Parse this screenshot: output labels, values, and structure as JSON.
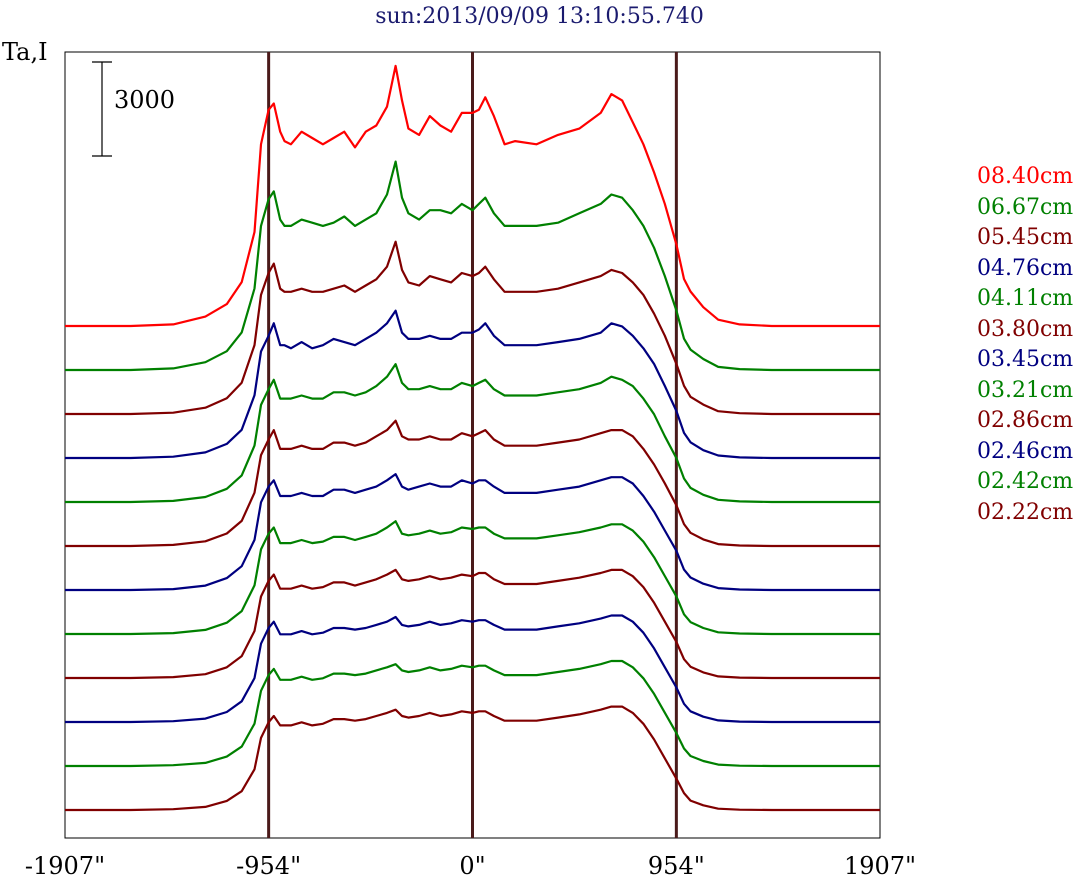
{
  "chart_data": {
    "type": "line",
    "title": "sun:2013/09/09 13:10:55.740",
    "ylabel": "Ta,I",
    "scale_bar": {
      "value": 3000,
      "label": "3000"
    },
    "x_ticks": [
      "-1907\"",
      "-954\"",
      "0\"",
      "954\"",
      "1907\""
    ],
    "x_tick_values": [
      -1907,
      -954,
      0,
      954,
      1907
    ],
    "xlim": [
      -1907,
      1907
    ],
    "vertical_markers": [
      -954,
      0,
      954
    ],
    "legend_position": "right",
    "series": [
      {
        "name": "08.40cm",
        "color": "#ff0000",
        "offset": 11,
        "profile": "p840"
      },
      {
        "name": "06.67cm",
        "color": "#008000",
        "offset": 10,
        "profile": "p667"
      },
      {
        "name": "05.45cm",
        "color": "#800000",
        "offset": 9,
        "profile": "p545"
      },
      {
        "name": "04.76cm",
        "color": "#000080",
        "offset": 8,
        "profile": "p476"
      },
      {
        "name": "04.11cm",
        "color": "#008000",
        "offset": 7,
        "profile": "p411"
      },
      {
        "name": "03.80cm",
        "color": "#800000",
        "offset": 6,
        "profile": "p380"
      },
      {
        "name": "03.45cm",
        "color": "#000080",
        "offset": 5,
        "profile": "p345"
      },
      {
        "name": "03.21cm",
        "color": "#008000",
        "offset": 4,
        "profile": "p321"
      },
      {
        "name": "02.86cm",
        "color": "#800000",
        "offset": 3,
        "profile": "p286"
      },
      {
        "name": "02.46cm",
        "color": "#000080",
        "offset": 2,
        "profile": "p246"
      },
      {
        "name": "02.42cm",
        "color": "#008000",
        "offset": 1,
        "profile": "p242"
      },
      {
        "name": "02.22cm",
        "color": "#800000",
        "offset": 0,
        "profile": "p222"
      }
    ],
    "profiles": {
      "x": [
        -1907,
        -1600,
        -1400,
        -1250,
        -1150,
        -1080,
        -1020,
        -990,
        -954,
        -930,
        -900,
        -880,
        -850,
        -800,
        -750,
        -700,
        -650,
        -600,
        -550,
        -500,
        -450,
        -400,
        -360,
        -330,
        -300,
        -250,
        -200,
        -150,
        -100,
        -50,
        0,
        30,
        60,
        100,
        150,
        200,
        300,
        400,
        500,
        600,
        650,
        700,
        750,
        800,
        850,
        900,
        954,
        990,
        1020,
        1080,
        1150,
        1250,
        1400,
        1600,
        1907
      ],
      "p840": [
        0,
        0,
        50,
        300,
        700,
        1400,
        3000,
        5800,
        6900,
        7100,
        6200,
        5900,
        5800,
        6200,
        6000,
        5800,
        6000,
        6200,
        5700,
        6200,
        6400,
        7000,
        8300,
        7200,
        6300,
        6100,
        6700,
        6400,
        6200,
        6800,
        6800,
        6900,
        7300,
        6700,
        5800,
        5900,
        5800,
        6100,
        6300,
        6800,
        7400,
        7200,
        6500,
        5800,
        4900,
        3900,
        2600,
        1500,
        1100,
        600,
        200,
        50,
        0,
        0,
        0
      ],
      "p667": [
        0,
        0,
        50,
        250,
        600,
        1200,
        2600,
        4600,
        5450,
        5700,
        4800,
        4600,
        4600,
        4800,
        4700,
        4600,
        4700,
        4900,
        4600,
        4800,
        5000,
        5600,
        6650,
        5500,
        5000,
        4800,
        5100,
        5100,
        5000,
        5300,
        5100,
        5300,
        5500,
        5000,
        4600,
        4600,
        4600,
        4700,
        5000,
        5300,
        5600,
        5500,
        5100,
        4600,
        3900,
        3000,
        1900,
        1000,
        650,
        350,
        100,
        30,
        0,
        0,
        0
      ],
      "p545": [
        0,
        0,
        40,
        200,
        500,
        1000,
        2200,
        3800,
        4500,
        4800,
        4000,
        3900,
        3900,
        4000,
        3900,
        3900,
        4000,
        4100,
        3900,
        4100,
        4300,
        4700,
        5500,
        4600,
        4200,
        4100,
        4400,
        4300,
        4200,
        4500,
        4400,
        4500,
        4700,
        4300,
        3900,
        3900,
        3900,
        4000,
        4200,
        4400,
        4600,
        4500,
        4200,
        3800,
        3200,
        2500,
        1600,
        900,
        550,
        300,
        90,
        25,
        0,
        0,
        0
      ],
      "p476": [
        0,
        0,
        40,
        180,
        450,
        900,
        2000,
        3400,
        3900,
        4300,
        3600,
        3600,
        3500,
        3700,
        3500,
        3600,
        3800,
        3700,
        3600,
        3800,
        4000,
        4300,
        4700,
        4000,
        3800,
        3800,
        3900,
        3800,
        3800,
        4000,
        4000,
        4100,
        4300,
        3900,
        3600,
        3600,
        3600,
        3700,
        3800,
        4000,
        4300,
        4200,
        3900,
        3500,
        3000,
        2300,
        1500,
        800,
        500,
        250,
        80,
        20,
        0,
        0,
        0
      ],
      "p411": [
        0,
        0,
        35,
        160,
        420,
        850,
        1800,
        3100,
        3600,
        3900,
        3300,
        3300,
        3300,
        3400,
        3300,
        3300,
        3500,
        3500,
        3400,
        3500,
        3700,
        4000,
        4400,
        3800,
        3600,
        3600,
        3700,
        3600,
        3600,
        3800,
        3700,
        3800,
        3900,
        3600,
        3400,
        3400,
        3400,
        3500,
        3600,
        3800,
        4000,
        3900,
        3700,
        3300,
        2800,
        2100,
        1400,
        750,
        450,
        230,
        70,
        20,
        0,
        0,
        0
      ],
      "p380": [
        0,
        0,
        35,
        150,
        400,
        800,
        1700,
        2900,
        3400,
        3700,
        3100,
        3100,
        3100,
        3200,
        3100,
        3100,
        3300,
        3300,
        3200,
        3300,
        3500,
        3700,
        4000,
        3500,
        3400,
        3400,
        3500,
        3400,
        3400,
        3600,
        3500,
        3600,
        3700,
        3400,
        3200,
        3200,
        3200,
        3300,
        3400,
        3600,
        3700,
        3700,
        3500,
        3100,
        2600,
        2000,
        1300,
        700,
        420,
        210,
        60,
        15,
        0,
        0,
        0
      ],
      "p345": [
        0,
        0,
        30,
        140,
        380,
        760,
        1600,
        2800,
        3300,
        3500,
        3000,
        3000,
        3000,
        3100,
        3000,
        3000,
        3200,
        3200,
        3100,
        3200,
        3300,
        3500,
        3700,
        3300,
        3200,
        3300,
        3400,
        3300,
        3300,
        3500,
        3400,
        3500,
        3500,
        3300,
        3100,
        3100,
        3100,
        3200,
        3300,
        3500,
        3600,
        3600,
        3400,
        3000,
        2500,
        1900,
        1250,
        650,
        400,
        200,
        60,
        15,
        0,
        0,
        0
      ],
      "p321": [
        0,
        0,
        30,
        130,
        360,
        730,
        1550,
        2700,
        3200,
        3400,
        2900,
        2900,
        2900,
        3000,
        2900,
        2950,
        3100,
        3100,
        3000,
        3100,
        3200,
        3400,
        3600,
        3200,
        3150,
        3200,
        3300,
        3200,
        3250,
        3400,
        3350,
        3400,
        3400,
        3200,
        3050,
        3050,
        3050,
        3150,
        3250,
        3400,
        3500,
        3500,
        3300,
        2950,
        2450,
        1850,
        1200,
        630,
        380,
        190,
        55,
        15,
        0,
        0,
        0
      ],
      "p286": [
        0,
        0,
        30,
        120,
        340,
        700,
        1500,
        2600,
        3100,
        3300,
        2850,
        2850,
        2850,
        2950,
        2850,
        2900,
        3050,
        3050,
        2950,
        3050,
        3150,
        3300,
        3450,
        3150,
        3100,
        3150,
        3250,
        3150,
        3200,
        3300,
        3250,
        3350,
        3350,
        3150,
        3000,
        3000,
        3000,
        3100,
        3200,
        3350,
        3450,
        3450,
        3250,
        2900,
        2400,
        1800,
        1150,
        600,
        360,
        180,
        50,
        12,
        0,
        0,
        0
      ],
      "p246": [
        0,
        0,
        25,
        110,
        320,
        660,
        1400,
        2500,
        3000,
        3200,
        2800,
        2800,
        2800,
        2900,
        2800,
        2850,
        3000,
        3000,
        2950,
        3000,
        3100,
        3200,
        3350,
        3100,
        3050,
        3100,
        3200,
        3100,
        3150,
        3250,
        3200,
        3250,
        3250,
        3100,
        2950,
        2950,
        2950,
        3050,
        3150,
        3300,
        3400,
        3400,
        3200,
        2850,
        2350,
        1750,
        1100,
        580,
        340,
        170,
        50,
        12,
        0,
        0,
        0
      ],
      "p242": [
        0,
        0,
        25,
        100,
        300,
        620,
        1350,
        2400,
        2900,
        3100,
        2750,
        2750,
        2750,
        2850,
        2750,
        2800,
        2950,
        2950,
        2900,
        2950,
        3050,
        3150,
        3250,
        3050,
        3000,
        3050,
        3150,
        3050,
        3100,
        3200,
        3150,
        3200,
        3200,
        3050,
        2900,
        2900,
        2900,
        3000,
        3100,
        3250,
        3350,
        3350,
        3150,
        2800,
        2300,
        1700,
        1050,
        560,
        320,
        160,
        45,
        10,
        0,
        0,
        0
      ],
      "p222": [
        0,
        0,
        25,
        100,
        290,
        600,
        1300,
        2300,
        2800,
        3000,
        2700,
        2700,
        2700,
        2800,
        2700,
        2750,
        2900,
        2900,
        2850,
        2900,
        3000,
        3100,
        3200,
        3000,
        2950,
        3000,
        3100,
        3000,
        3050,
        3150,
        3100,
        3150,
        3150,
        3000,
        2850,
        2850,
        2850,
        2950,
        3050,
        3200,
        3300,
        3300,
        3100,
        2750,
        2250,
        1650,
        1000,
        540,
        300,
        150,
        40,
        10,
        0,
        0,
        0
      ]
    }
  }
}
